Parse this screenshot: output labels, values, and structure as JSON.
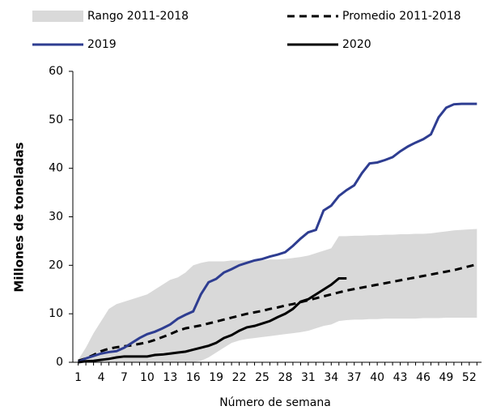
{
  "chart_data": {
    "type": "line",
    "x_label": "Número de semana",
    "y_label": "Millones de toneladas",
    "x": [
      1,
      2,
      3,
      4,
      5,
      6,
      7,
      8,
      9,
      10,
      11,
      12,
      13,
      14,
      15,
      16,
      17,
      18,
      19,
      20,
      21,
      22,
      23,
      24,
      25,
      26,
      27,
      28,
      29,
      30,
      31,
      32,
      33,
      34,
      35,
      36,
      37,
      38,
      39,
      40,
      41,
      42,
      43,
      44,
      45,
      46,
      47,
      48,
      49,
      50,
      51,
      52,
      53
    ],
    "xlim": [
      0.3,
      53.6
    ],
    "xticks": [
      1,
      4,
      7,
      10,
      13,
      16,
      19,
      22,
      25,
      28,
      31,
      34,
      37,
      40,
      43,
      46,
      49,
      52
    ],
    "ylim": [
      0,
      60
    ],
    "yticks": [
      0,
      10,
      20,
      30,
      40,
      50,
      60
    ],
    "series": [
      {
        "name": "Rango 2011-2018",
        "style": "band",
        "color": "#d9d9d9",
        "low": [
          0,
          0,
          0,
          0,
          0,
          0,
          0,
          0,
          0,
          0,
          0,
          0,
          0,
          0,
          0,
          0,
          0.3,
          1,
          2,
          3,
          4,
          4.5,
          4.8,
          5,
          5.2,
          5.4,
          5.6,
          5.8,
          6,
          6.2,
          6.5,
          7,
          7.5,
          7.8,
          8.5,
          8.7,
          8.8,
          8.8,
          8.9,
          8.9,
          9,
          9,
          9,
          9,
          9,
          9.1,
          9.1,
          9.1,
          9.2,
          9.2,
          9.2,
          9.2,
          9.2
        ],
        "high": [
          0.5,
          3,
          6,
          8.5,
          11,
          12,
          12.5,
          13,
          13.5,
          14,
          15,
          16,
          17,
          17.5,
          18.5,
          20,
          20.5,
          20.8,
          20.8,
          20.8,
          21,
          21,
          21,
          21,
          21,
          21.2,
          21.2,
          21.3,
          21.5,
          21.7,
          22,
          22.5,
          23,
          23.5,
          26,
          26,
          26.1,
          26.1,
          26.2,
          26.2,
          26.3,
          26.3,
          26.4,
          26.4,
          26.5,
          26.5,
          26.6,
          26.8,
          27,
          27.2,
          27.3,
          27.4,
          27.5
        ]
      },
      {
        "name": "Promedio 2011-2018",
        "style": "dashed",
        "color": "#000000",
        "values": [
          0.3,
          0.8,
          1.5,
          2.3,
          2.8,
          3.1,
          3.3,
          3.5,
          3.8,
          4.1,
          4.6,
          5.2,
          5.8,
          6.5,
          7,
          7.3,
          7.6,
          8,
          8.4,
          8.8,
          9.2,
          9.6,
          10,
          10.3,
          10.6,
          11,
          11.3,
          11.7,
          12,
          12.4,
          12.8,
          13.2,
          13.6,
          14,
          14.4,
          14.8,
          15.1,
          15.4,
          15.7,
          16,
          16.3,
          16.6,
          16.9,
          17.2,
          17.5,
          17.8,
          18.1,
          18.4,
          18.7,
          19,
          19.4,
          19.8,
          20.2
        ]
      },
      {
        "name": "2019",
        "style": "solid",
        "color": "#2e3d91",
        "values": [
          0,
          0.8,
          1.3,
          1.8,
          2.1,
          2.3,
          3,
          4,
          5,
          5.8,
          6.3,
          7,
          7.8,
          9,
          9.8,
          10.5,
          14,
          16.5,
          17.2,
          18.5,
          19.2,
          20,
          20.5,
          21,
          21.3,
          21.8,
          22.2,
          22.7,
          24,
          25.5,
          26.8,
          27.3,
          31.3,
          32.3,
          34.3,
          35.5,
          36.5,
          39,
          41,
          41.2,
          41.7,
          42.3,
          43.5,
          44.5,
          45.3,
          46,
          47,
          50.5,
          52.5,
          53.2,
          53.3,
          53.3,
          53.3
        ]
      },
      {
        "name": "2020",
        "style": "solid",
        "color": "#000000",
        "values": [
          0,
          0.2,
          0.3,
          0.5,
          0.7,
          1,
          1.2,
          1.2,
          1.2,
          1.2,
          1.5,
          1.6,
          1.8,
          2,
          2.2,
          2.6,
          3,
          3.4,
          4,
          5,
          5.6,
          6.5,
          7.2,
          7.5,
          8,
          8.5,
          9.3,
          10,
          11,
          12.5,
          13,
          14,
          15,
          16,
          17.3,
          17.3,
          null,
          null,
          null,
          null,
          null,
          null,
          null,
          null,
          null,
          null,
          null,
          null,
          null,
          null,
          null,
          null,
          null
        ]
      }
    ]
  }
}
